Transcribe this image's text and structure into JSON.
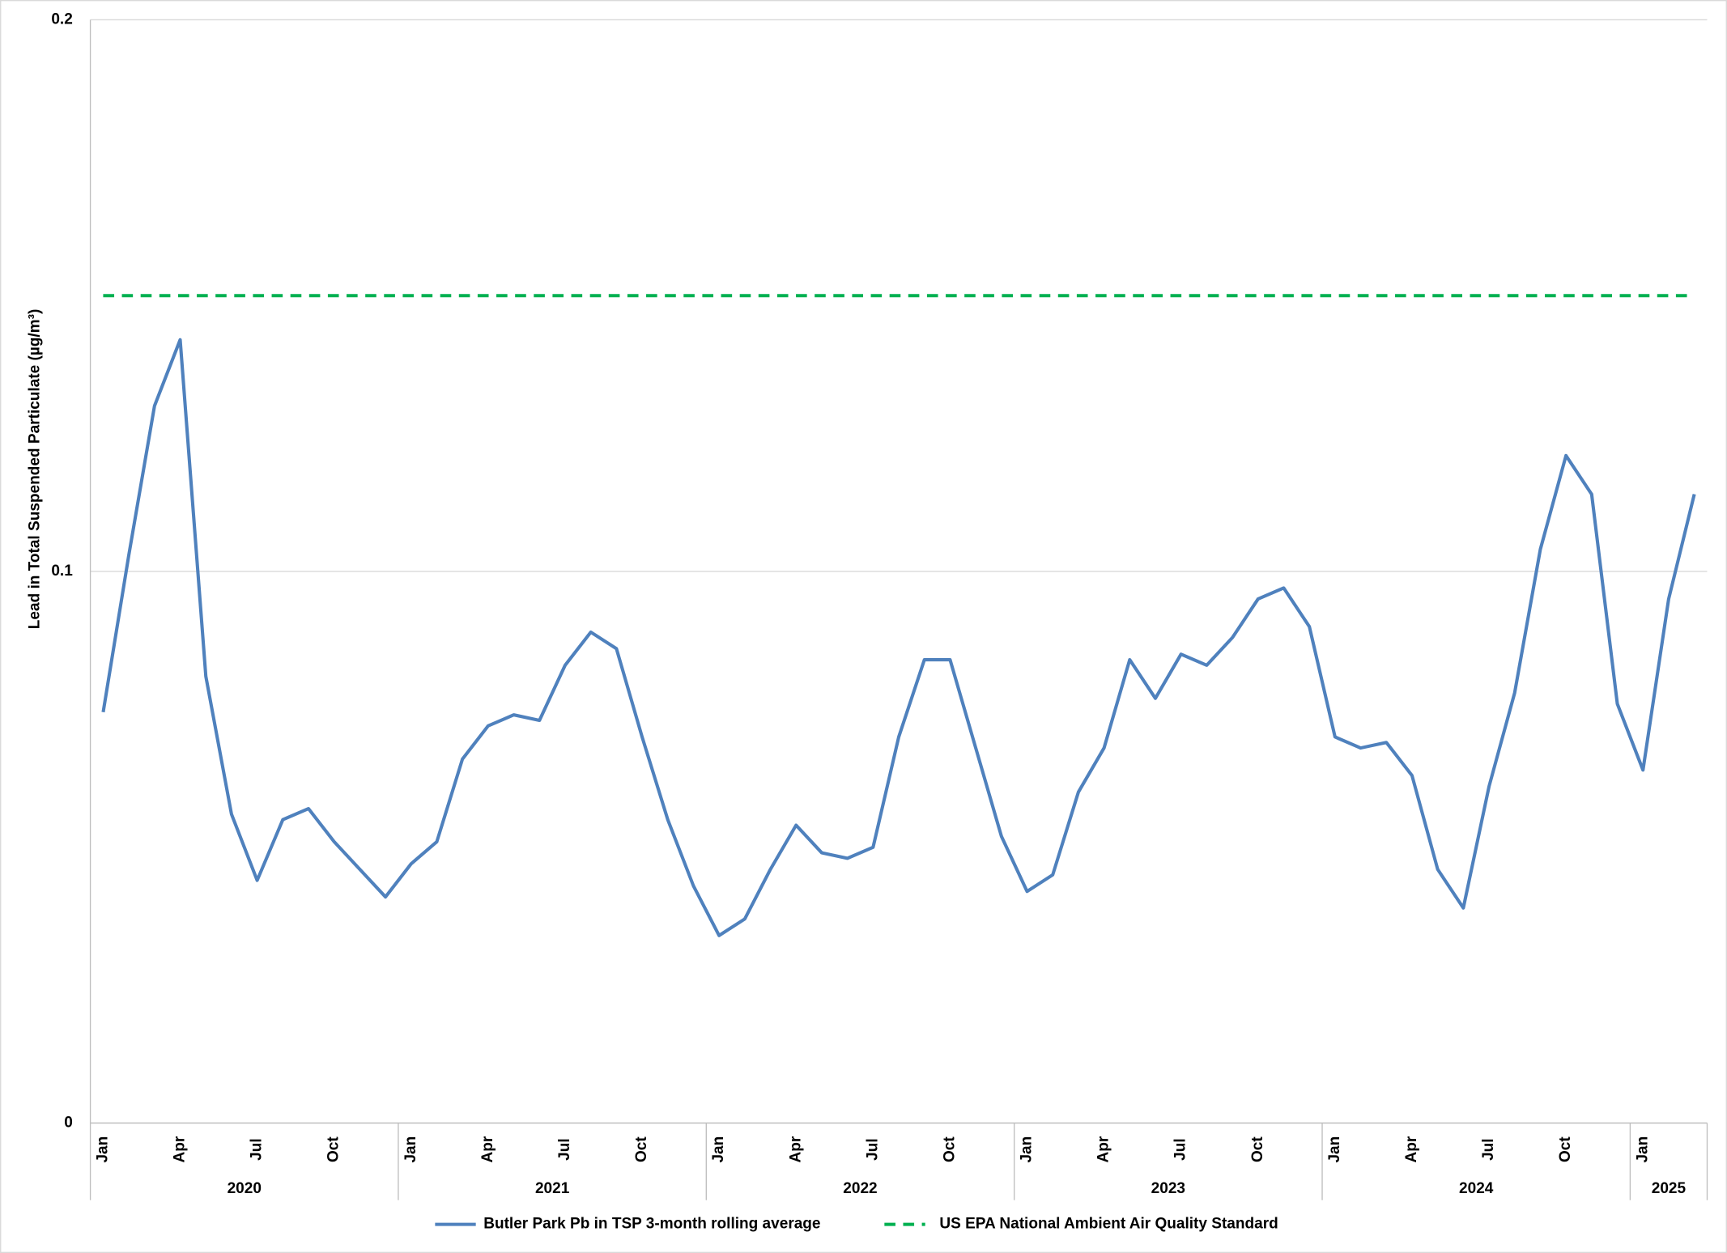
{
  "chart_data": {
    "type": "line",
    "y_label": "Lead in Total Suspended Particulate (µg/m³)",
    "categories": [
      "Jan",
      null,
      null,
      "Apr",
      null,
      null,
      "Jul",
      null,
      null,
      "Oct",
      null,
      null,
      "Jan",
      null,
      null,
      "Apr",
      null,
      null,
      "Jul",
      null,
      null,
      "Oct",
      null,
      null,
      "Jan",
      null,
      null,
      "Apr",
      null,
      null,
      "Jul",
      null,
      null,
      "Oct",
      null,
      null,
      "Jan",
      null,
      null,
      "Apr",
      null,
      null,
      "Jul",
      null,
      null,
      "Oct",
      null,
      null,
      "Jan",
      null,
      null,
      "Apr",
      null,
      null,
      "Jul",
      null,
      null,
      "Oct",
      null,
      null,
      "Jan",
      null,
      null
    ],
    "year_groups": [
      {
        "label": "2020",
        "months": 12
      },
      {
        "label": "2021",
        "months": 12
      },
      {
        "label": "2022",
        "months": 12
      },
      {
        "label": "2023",
        "months": 12
      },
      {
        "label": "2024",
        "months": 12
      },
      {
        "label": "2025",
        "months": 3
      }
    ],
    "series": [
      {
        "name": "Butler Park Pb in TSP 3-month rolling average",
        "color": "#4f81bd",
        "dash": false,
        "values": [
          0.0745,
          0.103,
          0.13,
          0.142,
          0.081,
          0.056,
          0.044,
          0.055,
          0.057,
          0.051,
          0.046,
          0.041,
          0.047,
          0.051,
          0.066,
          0.072,
          0.074,
          0.073,
          0.083,
          0.089,
          0.086,
          0.07,
          0.055,
          0.043,
          0.034,
          0.037,
          0.046,
          0.054,
          0.049,
          0.048,
          0.05,
          0.07,
          0.084,
          0.084,
          0.068,
          0.052,
          0.042,
          0.045,
          0.06,
          0.068,
          0.084,
          0.077,
          0.085,
          0.083,
          0.088,
          0.095,
          0.097,
          0.09,
          0.07,
          0.068,
          0.069,
          0.063,
          0.046,
          0.039,
          0.061,
          0.078,
          0.104,
          0.121,
          0.114,
          0.076,
          0.064,
          0.095,
          0.114
        ]
      },
      {
        "name": "US EPA National Ambient Air Quality Standard",
        "color": "#00b050",
        "dash": true,
        "values": [
          0.15,
          0.15,
          0.15,
          0.15,
          0.15,
          0.15,
          0.15,
          0.15,
          0.15,
          0.15,
          0.15,
          0.15,
          0.15,
          0.15,
          0.15,
          0.15,
          0.15,
          0.15,
          0.15,
          0.15,
          0.15,
          0.15,
          0.15,
          0.15,
          0.15,
          0.15,
          0.15,
          0.15,
          0.15,
          0.15,
          0.15,
          0.15,
          0.15,
          0.15,
          0.15,
          0.15,
          0.15,
          0.15,
          0.15,
          0.15,
          0.15,
          0.15,
          0.15,
          0.15,
          0.15,
          0.15,
          0.15,
          0.15,
          0.15,
          0.15,
          0.15,
          0.15,
          0.15,
          0.15,
          0.15,
          0.15,
          0.15,
          0.15,
          0.15,
          0.15,
          0.15,
          0.15,
          0.15
        ]
      }
    ],
    "ylim": [
      0,
      0.2
    ],
    "yticks": [
      0,
      0.1,
      0.2
    ],
    "grid": true,
    "legend": "bottom"
  }
}
